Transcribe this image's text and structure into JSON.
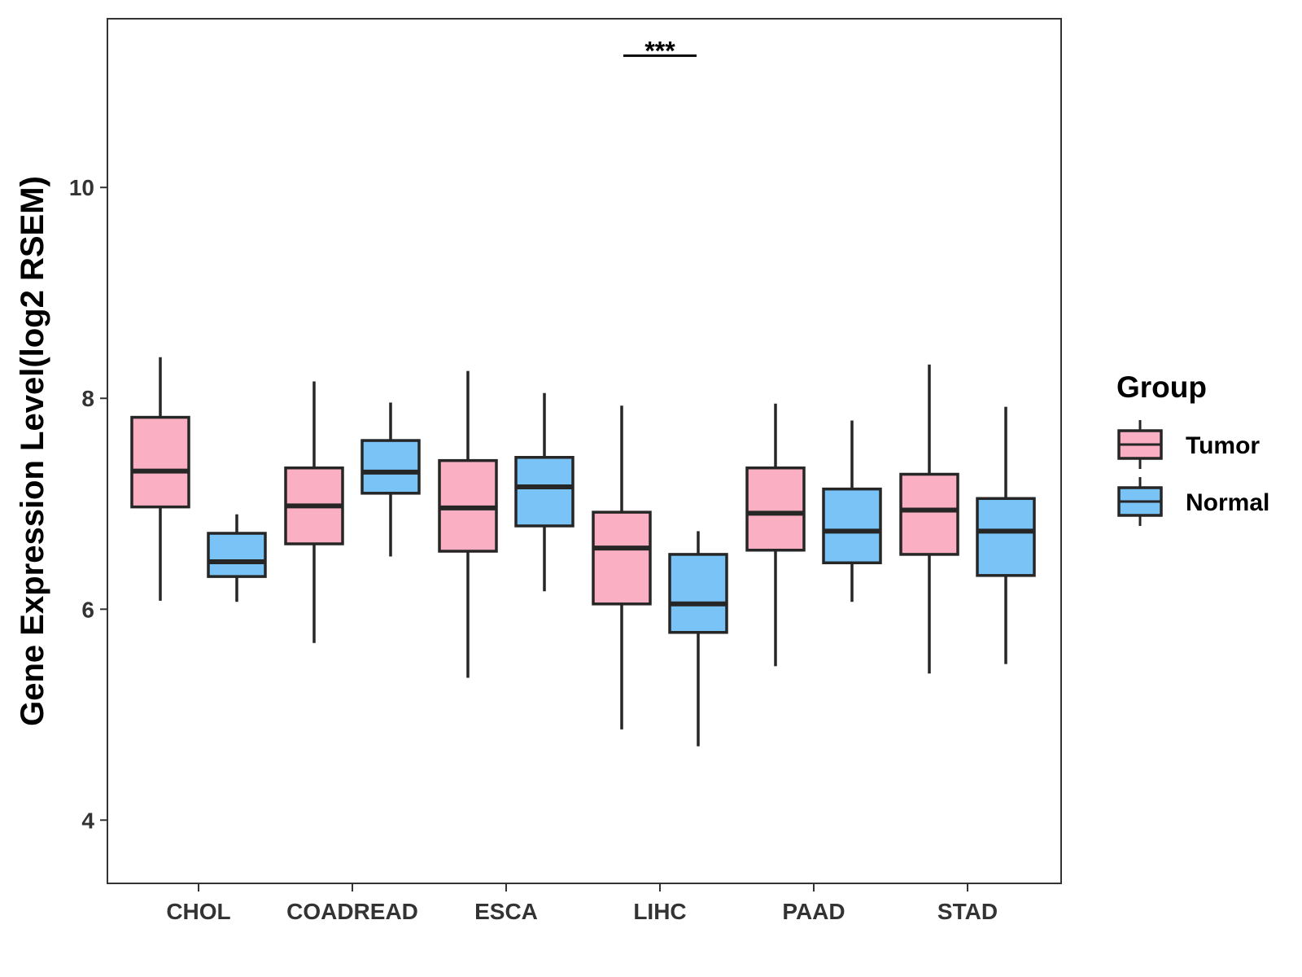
{
  "chart_data": {
    "type": "boxplot",
    "title": "",
    "xlabel": "",
    "ylabel": "Gene Expression Level(log2 RSEM)",
    "ylim": [
      3.4,
      11.6
    ],
    "yticks": [
      4,
      6,
      8,
      10
    ],
    "grid": false,
    "categories": [
      "CHOL",
      "COADREAD",
      "ESCA",
      "LIHC",
      "PAAD",
      "STAD"
    ],
    "legend": {
      "title": "Group",
      "position": "right",
      "entries": [
        {
          "name": "Tumor",
          "color": "#FAB0C2"
        },
        {
          "name": "Normal",
          "color": "#79C3F7"
        }
      ]
    },
    "series": [
      {
        "name": "Tumor",
        "color": "#FAB0C2",
        "boxes": [
          {
            "min": 6.08,
            "q1": 6.97,
            "median": 7.31,
            "q3": 7.82,
            "max": 8.39
          },
          {
            "min": 5.68,
            "q1": 6.62,
            "median": 6.98,
            "q3": 7.34,
            "max": 8.16
          },
          {
            "min": 5.35,
            "q1": 6.55,
            "median": 6.96,
            "q3": 7.41,
            "max": 8.26
          },
          {
            "min": 4.86,
            "q1": 6.05,
            "median": 6.58,
            "q3": 6.92,
            "max": 7.93
          },
          {
            "min": 5.46,
            "q1": 6.56,
            "median": 6.91,
            "q3": 7.34,
            "max": 7.95
          },
          {
            "min": 5.39,
            "q1": 6.52,
            "median": 6.94,
            "q3": 7.28,
            "max": 8.32
          }
        ]
      },
      {
        "name": "Normal",
        "color": "#79C3F7",
        "boxes": [
          {
            "min": 6.07,
            "q1": 6.31,
            "median": 6.45,
            "q3": 6.72,
            "max": 6.9
          },
          {
            "min": 6.5,
            "q1": 7.1,
            "median": 7.3,
            "q3": 7.6,
            "max": 7.96
          },
          {
            "min": 6.17,
            "q1": 6.79,
            "median": 7.16,
            "q3": 7.44,
            "max": 8.05
          },
          {
            "min": 4.7,
            "q1": 5.78,
            "median": 6.05,
            "q3": 6.52,
            "max": 6.74
          },
          {
            "min": 6.07,
            "q1": 6.44,
            "median": 6.74,
            "q3": 7.14,
            "max": 7.79
          },
          {
            "min": 5.48,
            "q1": 6.32,
            "median": 6.74,
            "q3": 7.05,
            "max": 7.92
          }
        ]
      }
    ],
    "annotations": [
      {
        "category": "LIHC",
        "label": "***",
        "y": 11.25
      }
    ]
  }
}
